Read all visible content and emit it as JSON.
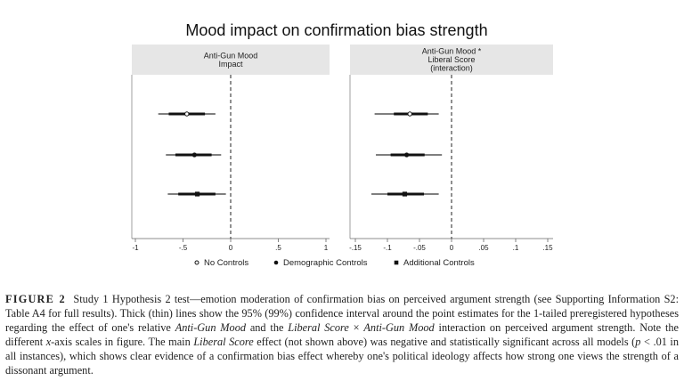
{
  "chart_data": {
    "type": "coefficient-plot",
    "title": "Mood impact on confirmation bias strength",
    "panels": [
      {
        "title_lines": [
          "Anti-Gun Mood",
          "Impact"
        ],
        "xlim": [
          -1,
          1
        ],
        "ticks": [
          -1,
          -0.5,
          0,
          0.5,
          1
        ],
        "tick_labels": [
          "-1",
          "-.5",
          "0",
          ".5",
          "1"
        ],
        "reference_line": 0,
        "estimates": [
          {
            "model": "No Controls",
            "marker": "hollow-circle",
            "point": -0.46,
            "ci95": [
              -0.65,
              -0.27
            ],
            "ci99": [
              -0.76,
              -0.16
            ]
          },
          {
            "model": "Demographic Controls",
            "marker": "filled-circle",
            "point": -0.38,
            "ci95": [
              -0.58,
              -0.2
            ],
            "ci99": [
              -0.68,
              -0.1
            ]
          },
          {
            "model": "Additional Controls",
            "marker": "filled-square",
            "point": -0.35,
            "ci95": [
              -0.55,
              -0.16
            ],
            "ci99": [
              -0.66,
              -0.05
            ]
          }
        ]
      },
      {
        "title_lines": [
          "Anti-Gun Mood *",
          "Liberal Score",
          "(interaction)"
        ],
        "xlim": [
          -0.15,
          0.15
        ],
        "ticks": [
          -0.15,
          -0.1,
          -0.05,
          0,
          0.05,
          0.1,
          0.15
        ],
        "tick_labels": [
          "-.15",
          "-.1",
          "-.05",
          "0",
          ".05",
          ".1",
          ".15"
        ],
        "reference_line": 0,
        "estimates": [
          {
            "model": "No Controls",
            "marker": "hollow-circle",
            "point": -0.065,
            "ci95": [
              -0.09,
              -0.037
            ],
            "ci99": [
              -0.12,
              -0.02
            ]
          },
          {
            "model": "Demographic Controls",
            "marker": "filled-circle",
            "point": -0.07,
            "ci95": [
              -0.095,
              -0.042
            ],
            "ci99": [
              -0.118,
              -0.015
            ]
          },
          {
            "model": "Additional Controls",
            "marker": "filled-square",
            "point": -0.073,
            "ci95": [
              -0.1,
              -0.043
            ],
            "ci99": [
              -0.125,
              -0.02
            ]
          }
        ]
      }
    ],
    "legend": [
      {
        "label": "No Controls",
        "marker": "hollow-circle"
      },
      {
        "label": "Demographic Controls",
        "marker": "filled-circle"
      },
      {
        "label": "Additional Controls",
        "marker": "filled-square"
      }
    ],
    "legend_position": "bottom"
  },
  "caption": {
    "label": "FIGURE 2",
    "p1": "Study 1 Hypothesis 2 test—emotion moderation of confirmation bias on perceived argument strength (see Supporting Information S2: Table A4 for full results). Thick (thin) lines show the 95% (99%) confidence interval around the point estimates for the 1-tailed preregistered hypotheses regarding the effect of one's relative ",
    "i1": "Anti-Gun Mood",
    "p2": " and the ",
    "i2": "Liberal Score",
    "p3": " × ",
    "i3": "Anti-Gun Mood",
    "p4": " interaction on perceived argument strength. Note the different ",
    "i4": "x",
    "p5": "-axis scales in figure. The main ",
    "i5": "Liberal Score",
    "p6": " effect (not shown above) was negative and statistically significant across all models (",
    "i6": "p",
    "p7": " < .01 in all instances), which shows clear evidence of a confirmation bias effect whereby one's political ideology affects how strong one views the strength of a dissonant argument."
  }
}
